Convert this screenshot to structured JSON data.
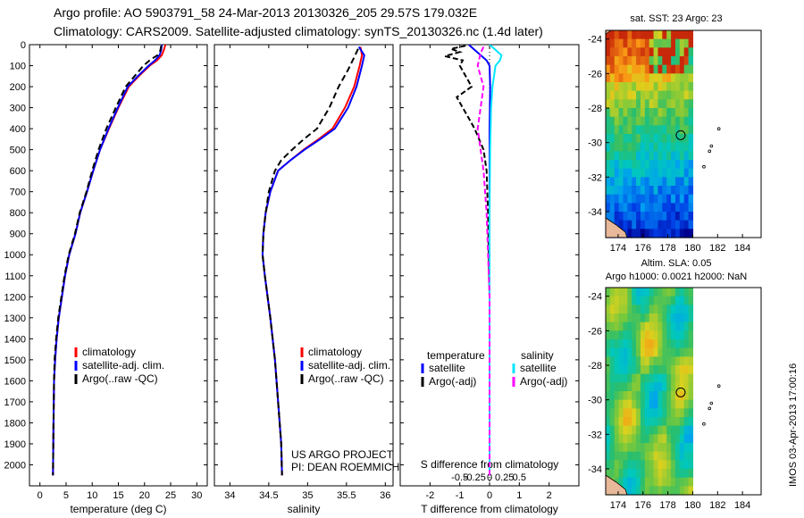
{
  "header": {
    "line1": "Argo profile: AO 5903791_58 24-Mar-2013 20130326_205 29.57S 179.032E",
    "line2": "Climatology: CARS2009. Satellite-adjusted climatology: synTS_20130326.nc (1.4d later)"
  },
  "side_text": "IMOS 03-Apr-2013 17:00:16",
  "chart_data": [
    {
      "id": "temperature",
      "type": "line",
      "xlabel": "temperature (deg C)",
      "ylabel": "",
      "xlim": [
        -2,
        32
      ],
      "ylim": [
        2100,
        0
      ],
      "xticks": [
        0,
        5,
        10,
        15,
        20,
        25,
        30
      ],
      "yticks": [
        0,
        100,
        200,
        300,
        400,
        500,
        600,
        700,
        800,
        900,
        1000,
        1100,
        1200,
        1300,
        1400,
        1500,
        1600,
        1700,
        1800,
        1900,
        2000
      ],
      "legend": [
        "climatology",
        "satellite-adj. clim.",
        "Argo(..raw -QC)"
      ],
      "legend_colors": [
        "#ff0000",
        "#0000ff",
        "#000000"
      ],
      "series": [
        {
          "name": "climatology",
          "color": "#ff0000",
          "dash": "",
          "x": [
            24.0,
            23.7,
            23.3,
            22.4,
            21.0,
            18.9,
            17.0,
            15.0,
            13.2,
            11.5,
            10.2,
            9.0,
            7.7,
            6.8,
            5.6,
            4.8,
            4.2,
            3.6,
            3.2,
            2.9,
            2.7,
            2.6,
            2.5
          ],
          "y": [
            0,
            25,
            50,
            75,
            100,
            150,
            200,
            300,
            400,
            500,
            600,
            700,
            800,
            900,
            1000,
            1100,
            1200,
            1300,
            1400,
            1500,
            1600,
            1800,
            2050
          ]
        },
        {
          "name": "satellite-adj. clim.",
          "color": "#0000ff",
          "dash": "",
          "x": [
            23.3,
            23.2,
            22.9,
            22.0,
            20.8,
            18.7,
            16.8,
            14.9,
            13.1,
            11.5,
            10.2,
            9.0,
            7.7,
            6.8,
            5.6,
            4.8,
            4.2,
            3.6,
            3.2,
            2.9,
            2.7,
            2.6,
            2.5
          ],
          "y": [
            0,
            25,
            50,
            75,
            100,
            150,
            200,
            300,
            400,
            500,
            600,
            700,
            800,
            900,
            1000,
            1100,
            1200,
            1300,
            1400,
            1500,
            1600,
            1800,
            2050
          ]
        },
        {
          "name": "Argo(..raw -QC)",
          "color": "#000000",
          "dash": "7,4",
          "x": [
            23.2,
            23.0,
            22.5,
            21.2,
            19.8,
            18.1,
            16.4,
            14.5,
            12.7,
            11.2,
            10.0,
            8.9,
            7.6,
            6.7,
            5.5,
            4.7,
            4.1,
            3.5,
            3.1,
            2.8,
            2.7,
            2.6,
            2.5
          ],
          "y": [
            5,
            30,
            50,
            70,
            100,
            150,
            200,
            300,
            400,
            500,
            600,
            700,
            800,
            900,
            1000,
            1100,
            1200,
            1300,
            1400,
            1500,
            1600,
            1800,
            2050
          ]
        }
      ]
    },
    {
      "id": "salinity",
      "type": "line",
      "xlabel": "salinity",
      "ylabel": "",
      "xlim": [
        33.8,
        36.1
      ],
      "ylim": [
        2100,
        0
      ],
      "xticks": [
        34,
        34.5,
        35,
        35.5,
        36
      ],
      "legend": [
        "climatology",
        "satellite-adj. clim.",
        "Argo(..raw -QC)"
      ],
      "legend_colors": [
        "#ff0000",
        "#0000ff",
        "#000000"
      ],
      "annotations": [
        "US ARGO PROJECT",
        "PI: DEAN ROEMMICH"
      ],
      "series": [
        {
          "name": "climatology",
          "color": "#ff0000",
          "dash": "",
          "x": [
            35.68,
            35.7,
            35.67,
            35.6,
            35.48,
            35.32,
            35.14,
            34.95,
            34.78,
            34.62,
            34.52,
            34.46,
            34.43,
            34.42,
            34.45,
            34.52,
            34.58,
            34.62,
            34.66,
            34.67
          ],
          "y": [
            10,
            50,
            100,
            200,
            300,
            400,
            450,
            500,
            550,
            600,
            700,
            800,
            900,
            1000,
            1100,
            1300,
            1500,
            1700,
            1900,
            2050
          ]
        },
        {
          "name": "satellite-adj. clim.",
          "color": "#0000ff",
          "dash": "",
          "x": [
            35.66,
            35.73,
            35.7,
            35.63,
            35.52,
            35.35,
            35.16,
            34.96,
            34.78,
            34.62,
            34.52,
            34.46,
            34.43,
            34.42,
            34.45,
            34.52,
            34.58,
            34.62,
            34.66,
            34.67
          ],
          "y": [
            10,
            50,
            100,
            200,
            300,
            400,
            450,
            500,
            550,
            600,
            700,
            800,
            900,
            1000,
            1100,
            1300,
            1500,
            1700,
            1900,
            2050
          ]
        },
        {
          "name": "Argo(..raw -QC)",
          "color": "#000000",
          "dash": "7,4",
          "x": [
            35.65,
            35.6,
            35.52,
            35.4,
            35.28,
            35.12,
            34.95,
            34.8,
            34.66,
            34.58,
            34.5,
            34.46,
            34.43,
            34.42,
            34.45,
            34.52,
            34.58,
            34.62,
            34.66,
            34.67
          ],
          "y": [
            20,
            60,
            120,
            200,
            300,
            400,
            450,
            500,
            550,
            600,
            700,
            800,
            900,
            1000,
            1100,
            1300,
            1500,
            1700,
            1900,
            2050
          ]
        }
      ]
    },
    {
      "id": "difference",
      "type": "line",
      "xlabel": "T difference from climatology",
      "secondary_xlabel": "S difference from climatology",
      "xlim": [
        -3,
        3
      ],
      "ylim": [
        2100,
        0
      ],
      "xticks": [
        -2,
        -1,
        0,
        1,
        2
      ],
      "secondary_xticks": [
        "-0.5",
        "-0.25",
        "0",
        "0.25",
        "0.5"
      ],
      "legend_temperature": {
        "title": "temperature",
        "entries": [
          "satellite",
          "Argo(-adj)"
        ],
        "colors": [
          "#0000ff",
          "#000000"
        ]
      },
      "legend_salinity": {
        "title": "salinity",
        "entries": [
          "satellite",
          "Argo(-adj)"
        ],
        "colors": [
          "#00e5ff",
          "#ff00ff"
        ]
      },
      "series": [
        {
          "name": "T satellite",
          "color": "#0000ff",
          "dash": "",
          "x": [
            -0.7,
            -0.5,
            -0.3,
            -0.1,
            0.0,
            0.02,
            0.0,
            0.0,
            0.0,
            0.0,
            0.0
          ],
          "y": [
            0,
            25,
            50,
            75,
            100,
            200,
            400,
            800,
            1200,
            1600,
            2050
          ]
        },
        {
          "name": "T Argo(-adj)",
          "color": "#000000",
          "dash": "6,3",
          "x": [
            -0.8,
            -1.3,
            -1.0,
            -1.5,
            -0.9,
            -1.0,
            -0.8,
            -0.6,
            -1.1,
            -0.9,
            -0.7,
            -0.5,
            -0.2,
            -0.1,
            -0.05,
            0.0,
            0.0
          ],
          "y": [
            5,
            20,
            35,
            55,
            75,
            100,
            150,
            200,
            250,
            300,
            350,
            400,
            500,
            600,
            800,
            1200,
            2050
          ]
        },
        {
          "name": "S satellite",
          "color": "#00e5ff",
          "dash": "",
          "x": [
            0.0,
            0.2,
            0.4,
            0.35,
            0.2,
            0.1,
            0.05,
            0.02,
            0.0,
            0.0,
            0.0
          ],
          "y": [
            0,
            25,
            50,
            75,
            100,
            200,
            300,
            500,
            800,
            1200,
            2050
          ]
        },
        {
          "name": "S Argo(-adj)",
          "color": "#ff00ff",
          "dash": "6,3",
          "x": [
            -0.2,
            -0.3,
            -0.4,
            -0.2,
            -0.3,
            -0.4,
            -0.3,
            -0.2,
            -0.1,
            0.0,
            0.0
          ],
          "y": [
            10,
            40,
            100,
            200,
            300,
            400,
            500,
            600,
            800,
            1200,
            2050
          ]
        }
      ]
    },
    {
      "id": "map_sst",
      "type": "heatmap",
      "title": "sat. SST: 23 Argo: 23",
      "xlim": [
        173,
        185.5
      ],
      "ylim": [
        -35.5,
        -23.5
      ],
      "xticks": [
        174,
        176,
        178,
        180,
        182,
        184
      ],
      "yticks": [
        -24,
        -26,
        -28,
        -30,
        -32,
        -34
      ],
      "argo_position": [
        179.03,
        -29.57
      ],
      "field_extent": [
        173,
        180,
        -35.5,
        -23.5
      ]
    },
    {
      "id": "map_sla",
      "type": "heatmap",
      "title": "Altim. SLA: 0.05",
      "subtitle": "Argo h1000: 0.0021 h2000: NaN",
      "xlim": [
        173,
        185.5
      ],
      "ylim": [
        -35.5,
        -23.5
      ],
      "xticks": [
        174,
        176,
        178,
        180,
        182,
        184
      ],
      "yticks": [
        -24,
        -26,
        -28,
        -30,
        -32,
        -34
      ],
      "argo_position": [
        179.03,
        -29.57
      ],
      "field_extent": [
        173,
        180,
        -35.5,
        -23.5
      ]
    }
  ]
}
